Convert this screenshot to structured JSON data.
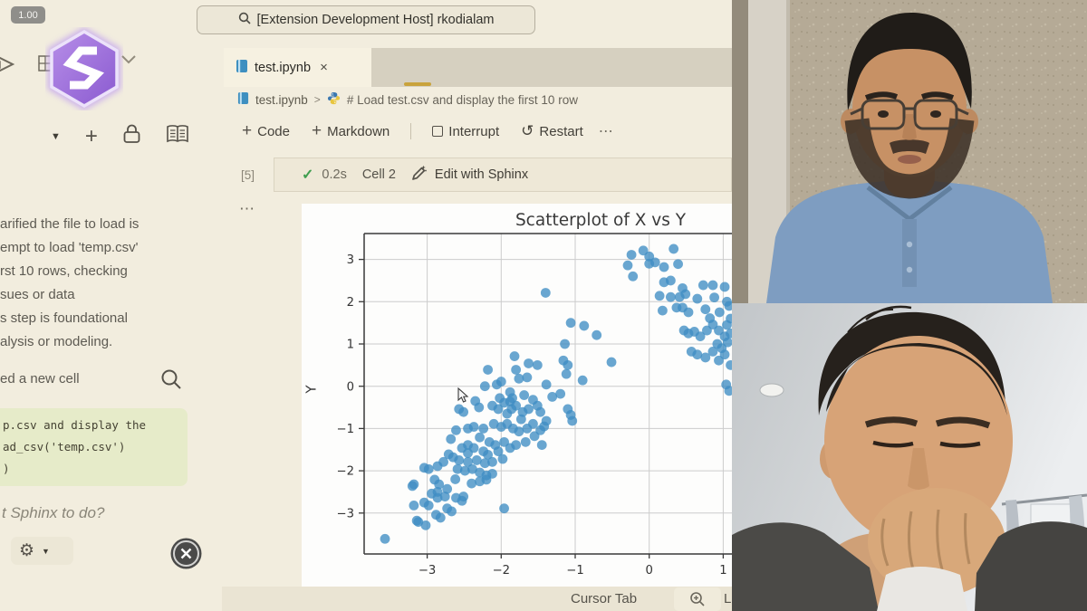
{
  "app": {
    "zoom_badge": "1.00",
    "back": "←",
    "forward": "→",
    "search_text": "[Extension Development Host] rkodialam"
  },
  "sidebar": {
    "dropdown_arrow": "▼",
    "plus": "+",
    "chat_lines": [
      "arified the file to load is",
      "empt to load 'temp.csv'",
      "rst 10 rows, checking",
      "sues or data",
      "s step is foundational",
      "alysis or modeling."
    ],
    "new_cell_line": "ed a new cell",
    "code_lines": [
      "p.csv and display the",
      "ad_csv('temp.csv')",
      ")"
    ],
    "input_placeholder": "t Sphinx to do?",
    "gear": "⚙",
    "gear_caret": "▼"
  },
  "editor": {
    "tab_label": "test.ipynb",
    "tab_close": "×",
    "breadcrumb_file": "test.ipynb",
    "breadcrumb_sep": ">",
    "breadcrumb_cell": "# Load test.csv and display the first 10 row",
    "btn_code": "Code",
    "btn_markdown": "Markdown",
    "btn_interrupt": "Interrupt",
    "btn_restart": "Restart",
    "restart_glyph": "↺",
    "toolbar_more": "⋯",
    "exec_count": "[5]",
    "exec_check": "✓",
    "exec_duration": "0.2s",
    "exec_cell": "Cell 2",
    "exec_action": "Edit with Sphinx",
    "cell_more": "⋯"
  },
  "status_bar": {
    "cursor_tab": "Cursor Tab",
    "line_partial": "L"
  },
  "chart_data": {
    "type": "scatter",
    "title": "Scatterplot of X vs Y",
    "ylabel": "Y",
    "grid": true,
    "legend": "none",
    "marker_color": "#3f8dc3",
    "x_tick_values": [
      -3,
      -2,
      -1,
      0,
      1
    ],
    "x_tick_labels": [
      "−3",
      "−2",
      "−1",
      "0",
      "1"
    ],
    "y_tick_values": [
      -3,
      -2,
      -1,
      0,
      1,
      2,
      3
    ],
    "y_tick_labels": [
      "−3",
      "−2",
      "−1",
      "0",
      "1",
      "2",
      "3"
    ],
    "xlim": [
      -3.85,
      1.12
    ],
    "ylim": [
      -3.97,
      3.61
    ],
    "points": [
      [
        -0.24,
        3.11
      ],
      [
        -0.08,
        3.21
      ],
      [
        0,
        3.07
      ],
      [
        0.33,
        3.25
      ],
      [
        -0.29,
        2.86
      ],
      [
        -0.22,
        2.6
      ],
      [
        0,
        2.9
      ],
      [
        0.08,
        2.93
      ],
      [
        0.2,
        2.82
      ],
      [
        0.39,
        2.89
      ],
      [
        0.29,
        2.5
      ],
      [
        0.2,
        2.46
      ],
      [
        0.45,
        2.32
      ],
      [
        0.73,
        2.39
      ],
      [
        0.86,
        2.39
      ],
      [
        0.14,
        2.14
      ],
      [
        0.29,
        2.11
      ],
      [
        0.41,
        2.11
      ],
      [
        0.49,
        2.18
      ],
      [
        0.65,
        2.07
      ],
      [
        0.18,
        1.79
      ],
      [
        0.37,
        1.86
      ],
      [
        0.45,
        1.86
      ],
      [
        0.53,
        1.75
      ],
      [
        0.76,
        1.82
      ],
      [
        0.82,
        1.61
      ],
      [
        0.47,
        1.32
      ],
      [
        0.53,
        1.25
      ],
      [
        0.61,
        1.29
      ],
      [
        0.69,
        1.18
      ],
      [
        0.78,
        1.32
      ],
      [
        0.86,
        1.46
      ],
      [
        0.94,
        1.32
      ],
      [
        1.02,
        1.18
      ],
      [
        0.57,
        0.82
      ],
      [
        0.65,
        0.75
      ],
      [
        0.76,
        0.68
      ],
      [
        0.86,
        0.82
      ],
      [
        0.94,
        0.61
      ],
      [
        1.02,
        0.75
      ],
      [
        1.06,
        1.04
      ],
      [
        1.1,
        1.25
      ],
      [
        1.04,
        0.04
      ],
      [
        1.08,
        -0.11
      ],
      [
        0.92,
        1.0
      ],
      [
        0.98,
        0.9
      ],
      [
        1.05,
        1.45
      ],
      [
        1.1,
        1.6
      ],
      [
        0.95,
        1.75
      ],
      [
        1.08,
        1.9
      ],
      [
        1.1,
        0.5
      ],
      [
        1.02,
        2.35
      ],
      [
        0.88,
        2.1
      ],
      [
        1.05,
        2.0
      ],
      [
        -1.4,
        2.21
      ],
      [
        -1.06,
        1.5
      ],
      [
        -0.88,
        1.43
      ],
      [
        -0.71,
        1.21
      ],
      [
        -1.14,
        1.0
      ],
      [
        -1.16,
        0.61
      ],
      [
        -1.1,
        0.5
      ],
      [
        -0.51,
        0.57
      ],
      [
        -1.12,
        0.29
      ],
      [
        -0.9,
        0.14
      ],
      [
        -2.18,
        0.39
      ],
      [
        -1.82,
        0.71
      ],
      [
        -1.8,
        0.39
      ],
      [
        -1.63,
        0.54
      ],
      [
        -1.51,
        0.5
      ],
      [
        -2.22,
        0
      ],
      [
        -2.06,
        0.04
      ],
      [
        -2,
        0.11
      ],
      [
        -1.76,
        0.18
      ],
      [
        -1.65,
        0.21
      ],
      [
        -1.39,
        0.04
      ],
      [
        -1.2,
        -0.18
      ],
      [
        -1.31,
        -0.25
      ],
      [
        -1.88,
        -0.14
      ],
      [
        -1.69,
        -0.21
      ],
      [
        -1.57,
        -0.32
      ],
      [
        -2.57,
        -0.54
      ],
      [
        -2.51,
        -0.61
      ],
      [
        -2.12,
        -0.46
      ],
      [
        -2.04,
        -0.54
      ],
      [
        -1.96,
        -0.39
      ],
      [
        -1.88,
        -0.36
      ],
      [
        -1.86,
        -0.54
      ],
      [
        -1.8,
        -0.46
      ],
      [
        -1.71,
        -0.61
      ],
      [
        -1.63,
        -0.54
      ],
      [
        -1.51,
        -0.46
      ],
      [
        -1.47,
        -0.61
      ],
      [
        -1.39,
        -0.82
      ],
      [
        -1.1,
        -0.54
      ],
      [
        -1.06,
        -0.68
      ],
      [
        -1.04,
        -0.82
      ],
      [
        -2.1,
        -0.89
      ],
      [
        -2.24,
        -1
      ],
      [
        -2.37,
        -0.96
      ],
      [
        -2.45,
        -1
      ],
      [
        -2.61,
        -1.04
      ],
      [
        -2,
        -0.96
      ],
      [
        -1.92,
        -0.89
      ],
      [
        -1.84,
        -1
      ],
      [
        -1.76,
        -1.07
      ],
      [
        -1.65,
        -1
      ],
      [
        -1.57,
        -0.89
      ],
      [
        -1.47,
        -1.04
      ],
      [
        -2.29,
        -1.21
      ],
      [
        -2.16,
        -1.32
      ],
      [
        -2.08,
        -1.39
      ],
      [
        -1.96,
        -1.32
      ],
      [
        -1.88,
        -1.46
      ],
      [
        -1.8,
        -1.39
      ],
      [
        -2.04,
        -1.54
      ],
      [
        -2.24,
        -1.54
      ],
      [
        -2.37,
        -1.46
      ],
      [
        -2.45,
        -1.39
      ],
      [
        -2.53,
        -1.46
      ],
      [
        -1.45,
        -1.39
      ],
      [
        -1.67,
        -1.32
      ],
      [
        -2.65,
        -1.68
      ],
      [
        -2.57,
        -1.75
      ],
      [
        -2.45,
        -1.79
      ],
      [
        -2.33,
        -1.75
      ],
      [
        -2.22,
        -1.82
      ],
      [
        -2.12,
        -1.79
      ],
      [
        -2.78,
        -1.79
      ],
      [
        -2.71,
        -1.61
      ],
      [
        -2.86,
        -1.89
      ],
      [
        -2.98,
        -1.96
      ],
      [
        -3.04,
        -1.93
      ],
      [
        -2.59,
        -1.96
      ],
      [
        -2.49,
        -2
      ],
      [
        -2.39,
        -1.96
      ],
      [
        -2.29,
        -2.04
      ],
      [
        -2.2,
        -2.11
      ],
      [
        -2.12,
        -2.07
      ],
      [
        -2.29,
        -2.25
      ],
      [
        -2.2,
        -2.21
      ],
      [
        -2.9,
        -2.21
      ],
      [
        -2.84,
        -2.32
      ],
      [
        -3.18,
        -2.32
      ],
      [
        -2.94,
        -2.54
      ],
      [
        -2.86,
        -2.5
      ],
      [
        -2.73,
        -2.43
      ],
      [
        -3.2,
        -2.36
      ],
      [
        -3.04,
        -2.75
      ],
      [
        -2.98,
        -2.82
      ],
      [
        -2.86,
        -2.64
      ],
      [
        -2.76,
        -2.61
      ],
      [
        -2.61,
        -2.64
      ],
      [
        -2.53,
        -2.71
      ],
      [
        -2.73,
        -2.89
      ],
      [
        -3.18,
        -2.82
      ],
      [
        -3.12,
        -3.21
      ],
      [
        -3.02,
        -3.29
      ],
      [
        -2.88,
        -3.04
      ],
      [
        -2.82,
        -3.11
      ],
      [
        -2.67,
        -2.96
      ],
      [
        -1.96,
        -2.89
      ],
      [
        -2.51,
        -2.61
      ],
      [
        -3.57,
        -3.61
      ],
      [
        -3.14,
        -3.18
      ],
      [
        -2.35,
        -0.35
      ],
      [
        -2.3,
        -0.5
      ],
      [
        -1.92,
        -0.65
      ],
      [
        -2.45,
        -1.58
      ],
      [
        -2.18,
        -1.62
      ],
      [
        -1.98,
        -1.72
      ],
      [
        -2.62,
        -2.2
      ],
      [
        -2.4,
        -2.3
      ],
      [
        -1.85,
        -0.28
      ],
      [
        -2.02,
        -0.28
      ],
      [
        -1.73,
        -0.78
      ],
      [
        -1.55,
        -1.18
      ],
      [
        -2.68,
        -1.25
      ],
      [
        -1.42,
        -0.95
      ]
    ]
  }
}
